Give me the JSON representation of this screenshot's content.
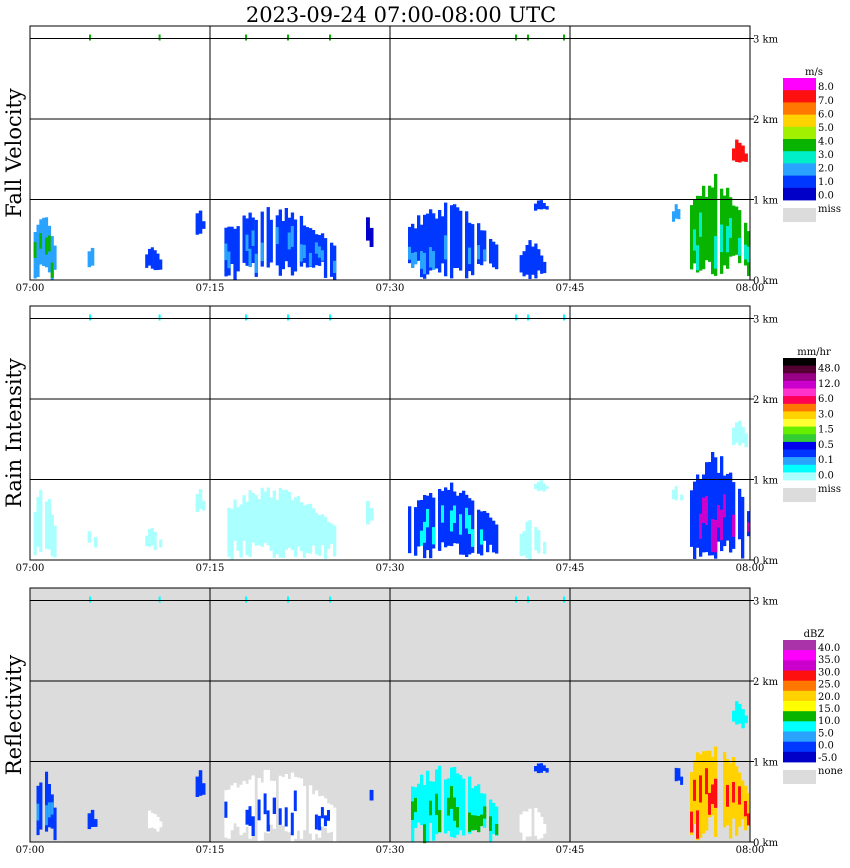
{
  "title": "2023-09-24   07:00-08:00 UTC",
  "chart_data": [
    {
      "type": "heatmap",
      "panel_label": "Fall Velocity",
      "unit": "m/s",
      "x_ticks": [
        "07:00",
        "07:15",
        "07:30",
        "07:45",
        "08:00"
      ],
      "y_ticks": [
        "0 km",
        "1 km",
        "2 km",
        "3 km"
      ],
      "xlim": [
        "07:00",
        "08:00"
      ],
      "ylim_km": [
        0,
        3.1
      ],
      "grid": true,
      "legend": {
        "placement": "right",
        "levels": [
          "8.0",
          "7.0",
          "6.0",
          "5.0",
          "4.0",
          "3.0",
          "2.0",
          "1.0",
          "0.0"
        ],
        "colors": [
          "#ff00ff",
          "#ff1010",
          "#ff7700",
          "#ffd200",
          "#a0f000",
          "#08b400",
          "#00eec8",
          "#2aa2ff",
          "#0038ff",
          "#0000c8"
        ],
        "missing_label": "miss",
        "missing_color": "#dcdcdc"
      },
      "background_color": "#ffffff",
      "echoes": [
        {
          "t0": 0.3,
          "t1": 2.2,
          "z0": 0.0,
          "z1": 0.95,
          "color": "#2aa2ff",
          "highlight": "#08b400"
        },
        {
          "t0": 4.8,
          "t1": 5.6,
          "z0": 0.15,
          "z1": 0.45,
          "color": "#2aa2ff"
        },
        {
          "t0": 9.6,
          "t1": 11.0,
          "z0": 0.12,
          "z1": 0.42,
          "color": "#0038ff"
        },
        {
          "t0": 13.8,
          "t1": 14.6,
          "z0": 0.55,
          "z1": 0.95,
          "color": "#0038ff"
        },
        {
          "t0": 16.2,
          "t1": 25.5,
          "z0": 0.0,
          "z1": 0.95,
          "color": "#0038ff",
          "highlight": "#2aa2ff"
        },
        {
          "t0": 28.0,
          "t1": 28.6,
          "z0": 0.4,
          "z1": 0.95,
          "color": "#0000c8"
        },
        {
          "t0": 31.5,
          "t1": 39.0,
          "z0": 0.0,
          "z1": 0.98,
          "color": "#0038ff",
          "highlight": "#2aa2ff"
        },
        {
          "t0": 40.8,
          "t1": 43.0,
          "z0": 0.0,
          "z1": 0.5,
          "color": "#0038ff"
        },
        {
          "t0": 42.0,
          "t1": 43.2,
          "z0": 0.85,
          "z1": 1.0,
          "color": "#0038ff"
        },
        {
          "t0": 53.5,
          "t1": 54.4,
          "z0": 0.7,
          "z1": 0.95,
          "color": "#2aa2ff"
        },
        {
          "t0": 55.0,
          "t1": 60.0,
          "z0": 0.0,
          "z1": 1.35,
          "color": "#08b400",
          "highlight": "#00eec8"
        },
        {
          "t0": 58.5,
          "t1": 59.8,
          "z0": 1.4,
          "z1": 1.78,
          "color": "#ff1010"
        }
      ],
      "top_specks_km": 3.0,
      "top_specks_minutes": [
        5,
        10.8,
        18,
        21.5,
        25,
        40.5,
        41.5,
        44.5
      ],
      "top_speck_color": "#08b400"
    },
    {
      "type": "heatmap",
      "panel_label": "Rain Intensity",
      "unit": "mm/hr",
      "x_ticks": [
        "07:00",
        "07:15",
        "07:30",
        "07:45",
        "08:00"
      ],
      "y_ticks": [
        "0 km",
        "1 km",
        "2 km",
        "3 km"
      ],
      "xlim": [
        "07:00",
        "08:00"
      ],
      "ylim_km": [
        0,
        3.1
      ],
      "grid": true,
      "legend": {
        "placement": "right",
        "levels": [
          "48.0",
          "12.0",
          "6.0",
          "3.0",
          "1.5",
          "0.5",
          "0.1",
          "0.0"
        ],
        "colors": [
          "#000000",
          "#550033",
          "#990088",
          "#cc00cc",
          "#ff33cc",
          "#ff0055",
          "#ff7700",
          "#ffd200",
          "#ffff33",
          "#66ee00",
          "#33cc33",
          "#0000ee",
          "#0033ff",
          "#2aa2ff",
          "#00ffff",
          "#aaffff"
        ],
        "missing_label": "miss",
        "missing_color": "#dcdcdc"
      },
      "background_color": "#ffffff",
      "echoes": [
        {
          "t0": 0.3,
          "t1": 2.2,
          "z0": 0.0,
          "z1": 0.95,
          "color": "#aaffff"
        },
        {
          "t0": 4.8,
          "t1": 5.6,
          "z0": 0.15,
          "z1": 0.45,
          "color": "#aaffff"
        },
        {
          "t0": 9.6,
          "t1": 11.0,
          "z0": 0.12,
          "z1": 0.42,
          "color": "#aaffff"
        },
        {
          "t0": 13.8,
          "t1": 14.6,
          "z0": 0.55,
          "z1": 0.95,
          "color": "#aaffff"
        },
        {
          "t0": 16.2,
          "t1": 25.5,
          "z0": 0.0,
          "z1": 0.95,
          "color": "#aaffff"
        },
        {
          "t0": 28.0,
          "t1": 28.6,
          "z0": 0.4,
          "z1": 0.95,
          "color": "#aaffff"
        },
        {
          "t0": 31.5,
          "t1": 39.0,
          "z0": 0.0,
          "z1": 0.98,
          "color": "#0033ff",
          "highlight": "#00ffff"
        },
        {
          "t0": 40.8,
          "t1": 43.0,
          "z0": 0.0,
          "z1": 0.5,
          "color": "#aaffff"
        },
        {
          "t0": 42.0,
          "t1": 43.2,
          "z0": 0.85,
          "z1": 1.0,
          "color": "#aaffff"
        },
        {
          "t0": 53.5,
          "t1": 54.4,
          "z0": 0.7,
          "z1": 0.95,
          "color": "#aaffff"
        },
        {
          "t0": 55.0,
          "t1": 60.0,
          "z0": 0.0,
          "z1": 1.35,
          "color": "#0033ff",
          "highlight": "#cc00cc"
        },
        {
          "t0": 58.5,
          "t1": 59.8,
          "z0": 1.4,
          "z1": 1.78,
          "color": "#aaffff"
        }
      ],
      "top_specks_km": 3.0,
      "top_specks_minutes": [
        5,
        10.8,
        18,
        21.5,
        25,
        40.5,
        41.5,
        44.5
      ],
      "top_speck_color": "#00ffff"
    },
    {
      "type": "heatmap",
      "panel_label": "Reflectivity",
      "unit": "dBZ",
      "x_ticks": [
        "07:00",
        "07:15",
        "07:30",
        "07:45",
        "08:00"
      ],
      "y_ticks": [
        "0 km",
        "1 km",
        "2 km",
        "3 km"
      ],
      "xlim": [
        "07:00",
        "08:00"
      ],
      "ylim_km": [
        0,
        3.1
      ],
      "grid": true,
      "legend": {
        "placement": "right",
        "levels": [
          "40.0",
          "35.0",
          "30.0",
          "25.0",
          "20.0",
          "15.0",
          "10.0",
          "5.0",
          "0.0",
          "-5.0"
        ],
        "colors": [
          "#aa33aa",
          "#ff00ff",
          "#cc00cc",
          "#ff1010",
          "#ff7700",
          "#ffd200",
          "#ffff00",
          "#08b400",
          "#00ffff",
          "#2aa2ff",
          "#0038ff",
          "#0000c8"
        ],
        "missing_label": "none",
        "missing_color": "#dcdcdc"
      },
      "background_color": "#dcdcdc",
      "echoes": [
        {
          "t0": 0.3,
          "t1": 2.2,
          "z0": 0.0,
          "z1": 0.95,
          "color": "#0038ff",
          "highlight": "#2aa2ff"
        },
        {
          "t0": 4.8,
          "t1": 5.6,
          "z0": 0.15,
          "z1": 0.45,
          "color": "#0038ff"
        },
        {
          "t0": 9.6,
          "t1": 11.0,
          "z0": 0.12,
          "z1": 0.42,
          "color": "#ffffff"
        },
        {
          "t0": 13.8,
          "t1": 14.6,
          "z0": 0.55,
          "z1": 0.95,
          "color": "#0038ff"
        },
        {
          "t0": 16.2,
          "t1": 25.5,
          "z0": 0.0,
          "z1": 0.95,
          "color": "#ffffff",
          "highlight": "#0038ff"
        },
        {
          "t0": 28.0,
          "t1": 28.6,
          "z0": 0.4,
          "z1": 0.95,
          "color": "#0038ff"
        },
        {
          "t0": 31.5,
          "t1": 39.0,
          "z0": 0.0,
          "z1": 0.98,
          "color": "#00ffff",
          "highlight": "#08b400"
        },
        {
          "t0": 40.8,
          "t1": 43.0,
          "z0": 0.0,
          "z1": 0.5,
          "color": "#ffffff"
        },
        {
          "t0": 42.0,
          "t1": 43.2,
          "z0": 0.85,
          "z1": 1.0,
          "color": "#0038ff"
        },
        {
          "t0": 53.5,
          "t1": 54.4,
          "z0": 0.7,
          "z1": 0.95,
          "color": "#0038ff"
        },
        {
          "t0": 55.0,
          "t1": 60.0,
          "z0": 0.0,
          "z1": 1.35,
          "color": "#ffd200",
          "highlight": "#ff1010"
        },
        {
          "t0": 58.5,
          "t1": 59.8,
          "z0": 1.4,
          "z1": 1.78,
          "color": "#00ffff"
        }
      ],
      "top_specks_km": 3.0,
      "top_specks_minutes": [
        5,
        10.8,
        18,
        21.5,
        25,
        40.5,
        41.5,
        44.5
      ],
      "top_speck_color": "#00ffff"
    }
  ]
}
